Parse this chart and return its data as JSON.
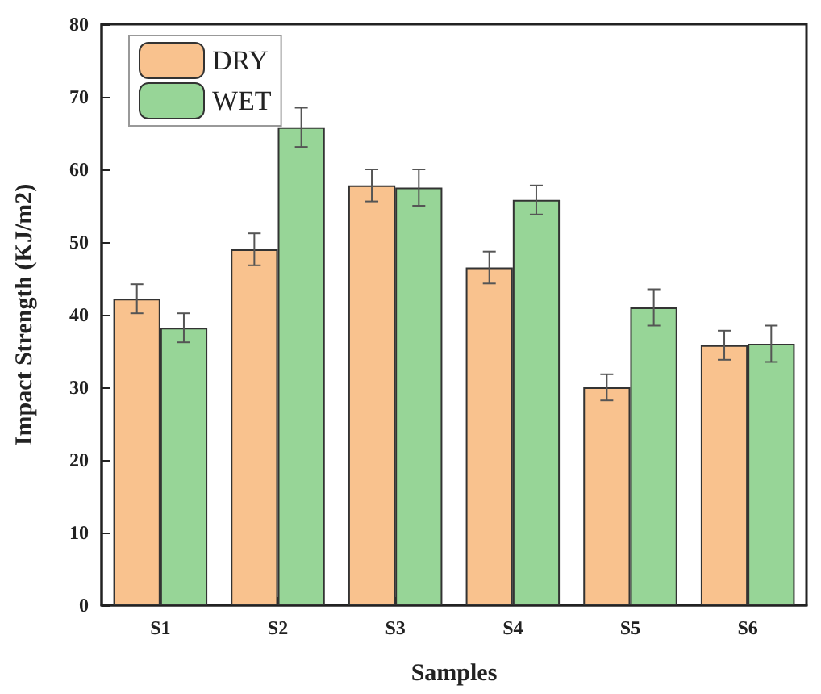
{
  "chart_data": {
    "type": "bar",
    "xlabel": "Samples",
    "ylabel": "Impact Strength (KJ/m2)",
    "categories": [
      "S1",
      "S2",
      "S3",
      "S4",
      "S5",
      "S6"
    ],
    "series": [
      {
        "name": "DRY",
        "color": "#f9c28e",
        "values": [
          42.2,
          49,
          57.8,
          46.5,
          30,
          35.8
        ],
        "errors": [
          2,
          2.2,
          2.2,
          2.2,
          1.8,
          2
        ]
      },
      {
        "name": "WET",
        "color": "#97d597",
        "values": [
          38.2,
          65.8,
          57.5,
          55.8,
          41,
          36
        ],
        "errors": [
          2,
          2.7,
          2.5,
          2,
          2.5,
          2.5
        ]
      }
    ],
    "ylim": [
      0,
      80
    ],
    "yticks": [
      0,
      10,
      20,
      30,
      40,
      50,
      60,
      70,
      80
    ],
    "grid": false,
    "legend": "top left"
  }
}
